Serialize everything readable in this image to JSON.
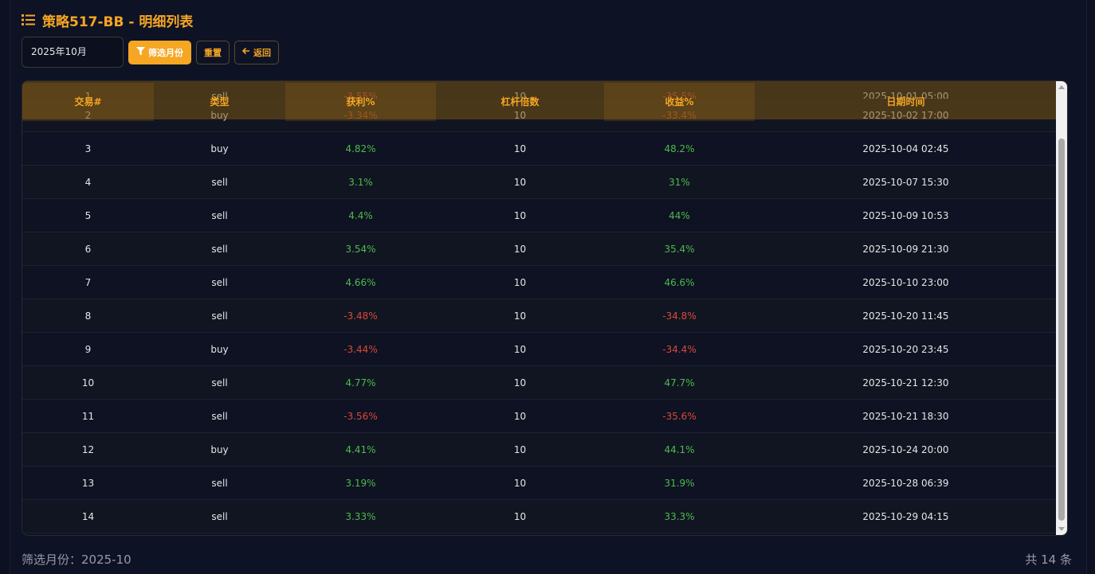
{
  "title": "策略517-BB - 明细列表",
  "toolbar": {
    "month_value": "2025年10月",
    "filter_label": "筛选月份",
    "reset_label": "重置",
    "back_label": "返回"
  },
  "table": {
    "columns": [
      "交易#",
      "类型",
      "获利%",
      "杠杆倍数",
      "收益%",
      "日期时间"
    ],
    "rows": [
      {
        "id": "1",
        "type": "sell",
        "profit": "-3.55%",
        "leverage": "10",
        "return": "-35.5%",
        "datetime": "2025-10-01 05:00"
      },
      {
        "id": "2",
        "type": "buy",
        "profit": "-3.34%",
        "leverage": "10",
        "return": "-33.4%",
        "datetime": "2025-10-02 17:00"
      },
      {
        "id": "3",
        "type": "buy",
        "profit": "4.82%",
        "leverage": "10",
        "return": "48.2%",
        "datetime": "2025-10-04 02:45"
      },
      {
        "id": "4",
        "type": "sell",
        "profit": "3.1%",
        "leverage": "10",
        "return": "31%",
        "datetime": "2025-10-07 15:30"
      },
      {
        "id": "5",
        "type": "sell",
        "profit": "4.4%",
        "leverage": "10",
        "return": "44%",
        "datetime": "2025-10-09 10:53"
      },
      {
        "id": "6",
        "type": "sell",
        "profit": "3.54%",
        "leverage": "10",
        "return": "35.4%",
        "datetime": "2025-10-09 21:30"
      },
      {
        "id": "7",
        "type": "sell",
        "profit": "4.66%",
        "leverage": "10",
        "return": "46.6%",
        "datetime": "2025-10-10 23:00"
      },
      {
        "id": "8",
        "type": "sell",
        "profit": "-3.48%",
        "leverage": "10",
        "return": "-34.8%",
        "datetime": "2025-10-20 11:45"
      },
      {
        "id": "9",
        "type": "buy",
        "profit": "-3.44%",
        "leverage": "10",
        "return": "-34.4%",
        "datetime": "2025-10-20 23:45"
      },
      {
        "id": "10",
        "type": "sell",
        "profit": "4.77%",
        "leverage": "10",
        "return": "47.7%",
        "datetime": "2025-10-21 12:30"
      },
      {
        "id": "11",
        "type": "sell",
        "profit": "-3.56%",
        "leverage": "10",
        "return": "-35.6%",
        "datetime": "2025-10-21 18:30"
      },
      {
        "id": "12",
        "type": "buy",
        "profit": "4.41%",
        "leverage": "10",
        "return": "44.1%",
        "datetime": "2025-10-24 20:00"
      },
      {
        "id": "13",
        "type": "sell",
        "profit": "3.19%",
        "leverage": "10",
        "return": "31.9%",
        "datetime": "2025-10-28 06:39"
      },
      {
        "id": "14",
        "type": "sell",
        "profit": "3.33%",
        "leverage": "10",
        "return": "33.3%",
        "datetime": "2025-10-29 04:15"
      }
    ]
  },
  "footer": {
    "filter_text": "筛选月份：2025-10",
    "count_text": "共 14 条"
  },
  "colors": {
    "accent": "#f5a623",
    "positive": "#4cbb4c",
    "negative": "#d9483b",
    "background": "#0e1225"
  },
  "icons": {
    "title": "list-icon",
    "filter": "filter-icon",
    "back": "arrow-left-icon"
  }
}
